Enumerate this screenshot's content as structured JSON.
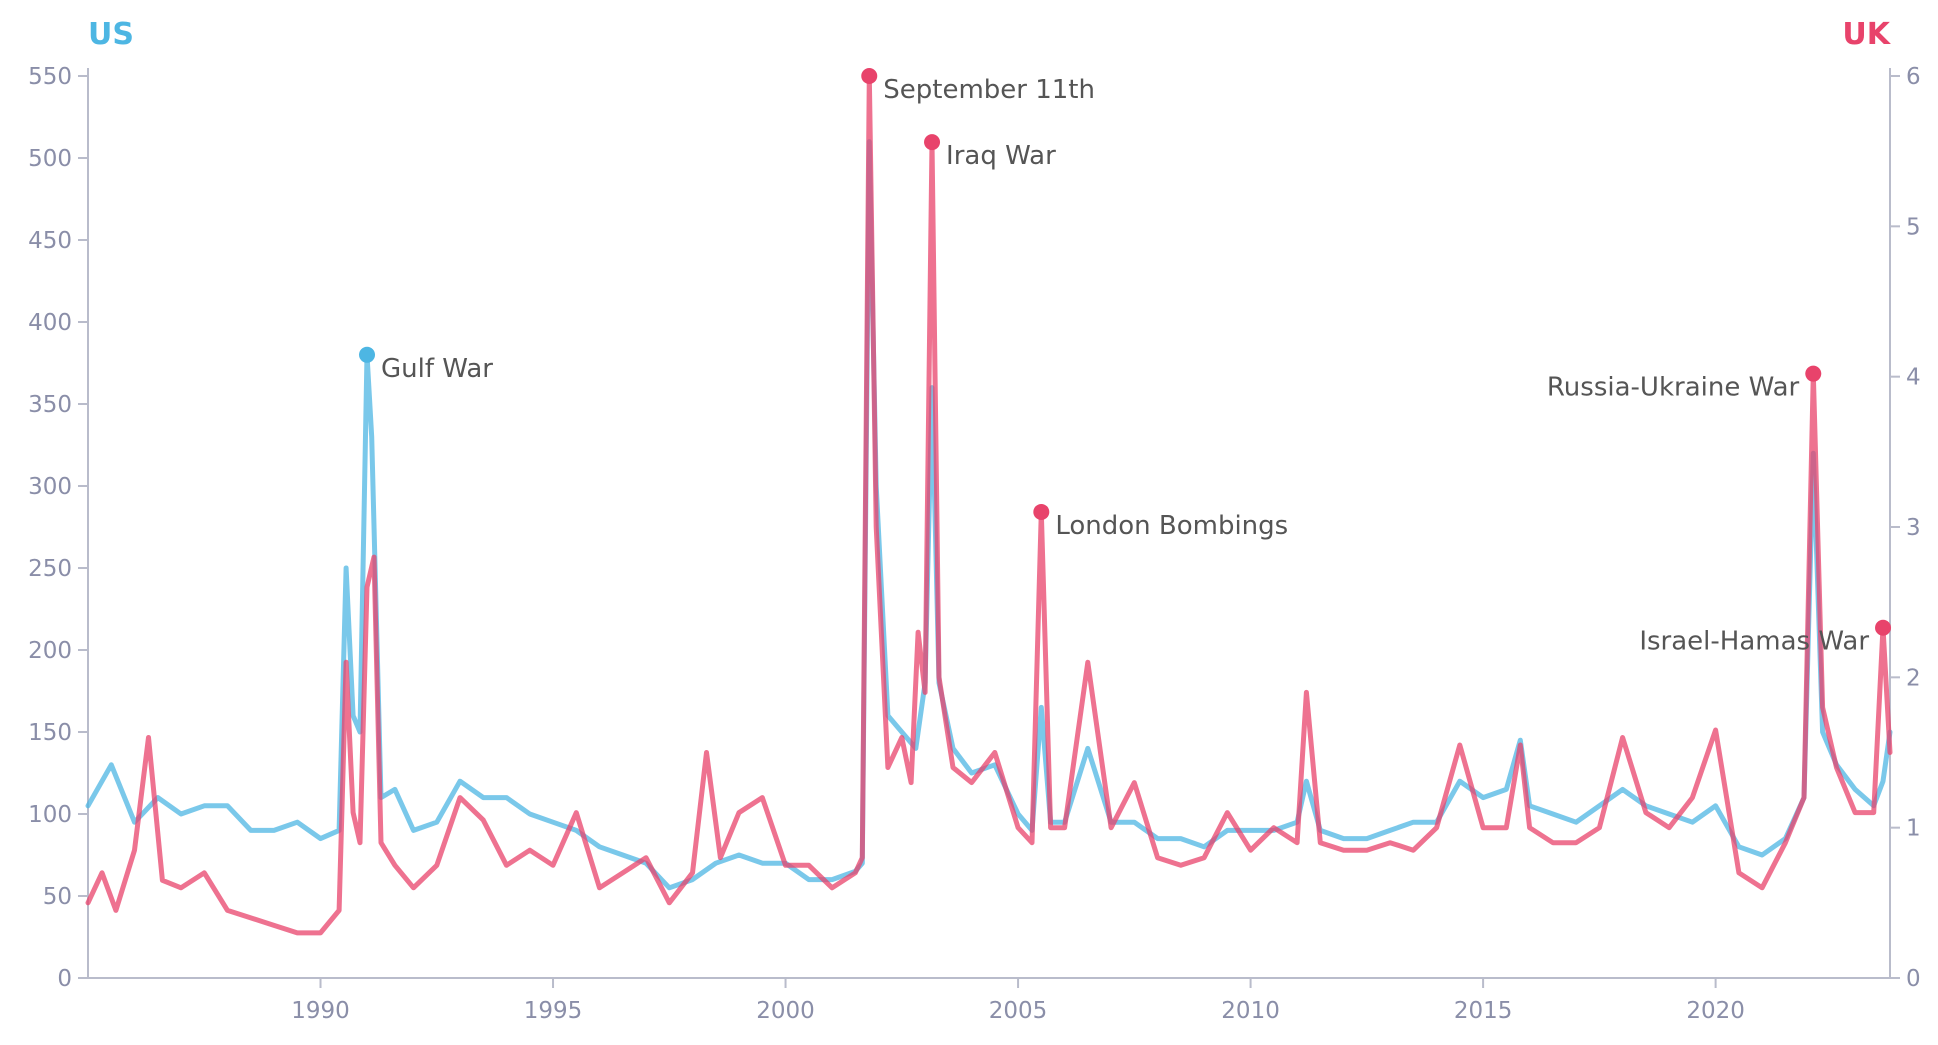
{
  "chart_data": {
    "type": "line",
    "title": "",
    "left_axis": {
      "label": "US",
      "color": "#4db6e3",
      "range": [
        0,
        550
      ],
      "ticks": [
        0,
        50,
        100,
        150,
        200,
        250,
        300,
        350,
        400,
        450,
        500,
        550
      ]
    },
    "right_axis": {
      "label": "UK",
      "color": "#e8436b",
      "range": [
        0,
        6
      ],
      "ticks": [
        0,
        1,
        2,
        3,
        4,
        5,
        6
      ]
    },
    "x_axis": {
      "range": [
        1985,
        2023.75
      ],
      "ticks": [
        1990,
        1995,
        2000,
        2005,
        2010,
        2015,
        2020
      ]
    },
    "grid": false,
    "series": [
      {
        "name": "US",
        "axis": "left",
        "color": "#4db6e3",
        "points": [
          [
            1985.0,
            105
          ],
          [
            1985.5,
            130
          ],
          [
            1986.0,
            95
          ],
          [
            1986.5,
            110
          ],
          [
            1987.0,
            100
          ],
          [
            1987.5,
            105
          ],
          [
            1988.0,
            105
          ],
          [
            1988.5,
            90
          ],
          [
            1989.0,
            90
          ],
          [
            1989.5,
            95
          ],
          [
            1990.0,
            85
          ],
          [
            1990.4,
            90
          ],
          [
            1990.55,
            250
          ],
          [
            1990.7,
            160
          ],
          [
            1990.85,
            150
          ],
          [
            1991.0,
            380
          ],
          [
            1991.1,
            330
          ],
          [
            1991.3,
            110
          ],
          [
            1991.6,
            115
          ],
          [
            1992.0,
            90
          ],
          [
            1992.5,
            95
          ],
          [
            1993.0,
            120
          ],
          [
            1993.5,
            110
          ],
          [
            1994.0,
            110
          ],
          [
            1994.5,
            100
          ],
          [
            1995.0,
            95
          ],
          [
            1995.5,
            90
          ],
          [
            1996.0,
            80
          ],
          [
            1996.5,
            75
          ],
          [
            1997.0,
            70
          ],
          [
            1997.5,
            55
          ],
          [
            1998.0,
            60
          ],
          [
            1998.5,
            70
          ],
          [
            1999.0,
            75
          ],
          [
            1999.5,
            70
          ],
          [
            2000.0,
            70
          ],
          [
            2000.5,
            60
          ],
          [
            2001.0,
            60
          ],
          [
            2001.5,
            65
          ],
          [
            2001.65,
            70
          ],
          [
            2001.8,
            510
          ],
          [
            2001.95,
            300
          ],
          [
            2002.2,
            160
          ],
          [
            2002.5,
            150
          ],
          [
            2002.8,
            140
          ],
          [
            2003.0,
            180
          ],
          [
            2003.15,
            360
          ],
          [
            2003.3,
            180
          ],
          [
            2003.6,
            140
          ],
          [
            2004.0,
            125
          ],
          [
            2004.5,
            130
          ],
          [
            2005.0,
            100
          ],
          [
            2005.3,
            90
          ],
          [
            2005.5,
            165
          ],
          [
            2005.7,
            95
          ],
          [
            2006.0,
            95
          ],
          [
            2006.5,
            140
          ],
          [
            2007.0,
            95
          ],
          [
            2007.5,
            95
          ],
          [
            2008.0,
            85
          ],
          [
            2008.5,
            85
          ],
          [
            2009.0,
            80
          ],
          [
            2009.5,
            90
          ],
          [
            2010.0,
            90
          ],
          [
            2010.5,
            90
          ],
          [
            2011.0,
            95
          ],
          [
            2011.2,
            120
          ],
          [
            2011.5,
            90
          ],
          [
            2012.0,
            85
          ],
          [
            2012.5,
            85
          ],
          [
            2013.0,
            90
          ],
          [
            2013.5,
            95
          ],
          [
            2014.0,
            95
          ],
          [
            2014.5,
            120
          ],
          [
            2015.0,
            110
          ],
          [
            2015.5,
            115
          ],
          [
            2015.8,
            145
          ],
          [
            2016.0,
            105
          ],
          [
            2016.5,
            100
          ],
          [
            2017.0,
            95
          ],
          [
            2017.5,
            105
          ],
          [
            2018.0,
            115
          ],
          [
            2018.5,
            105
          ],
          [
            2019.0,
            100
          ],
          [
            2019.5,
            95
          ],
          [
            2020.0,
            105
          ],
          [
            2020.5,
            80
          ],
          [
            2021.0,
            75
          ],
          [
            2021.5,
            85
          ],
          [
            2021.9,
            110
          ],
          [
            2022.1,
            320
          ],
          [
            2022.3,
            150
          ],
          [
            2022.6,
            130
          ],
          [
            2023.0,
            115
          ],
          [
            2023.4,
            105
          ],
          [
            2023.6,
            120
          ],
          [
            2023.75,
            150
          ]
        ]
      },
      {
        "name": "UK",
        "axis": "right",
        "color": "#e8436b",
        "points": [
          [
            1985.0,
            0.5
          ],
          [
            1985.3,
            0.7
          ],
          [
            1985.6,
            0.45
          ],
          [
            1986.0,
            0.85
          ],
          [
            1986.3,
            1.6
          ],
          [
            1986.6,
            0.65
          ],
          [
            1987.0,
            0.6
          ],
          [
            1987.5,
            0.7
          ],
          [
            1988.0,
            0.45
          ],
          [
            1988.5,
            0.4
          ],
          [
            1989.0,
            0.35
          ],
          [
            1989.5,
            0.3
          ],
          [
            1990.0,
            0.3
          ],
          [
            1990.4,
            0.45
          ],
          [
            1990.55,
            2.1
          ],
          [
            1990.7,
            1.1
          ],
          [
            1990.85,
            0.9
          ],
          [
            1991.0,
            2.6
          ],
          [
            1991.15,
            2.8
          ],
          [
            1991.3,
            0.9
          ],
          [
            1991.6,
            0.75
          ],
          [
            1992.0,
            0.6
          ],
          [
            1992.5,
            0.75
          ],
          [
            1993.0,
            1.2
          ],
          [
            1993.5,
            1.05
          ],
          [
            1994.0,
            0.75
          ],
          [
            1994.5,
            0.85
          ],
          [
            1995.0,
            0.75
          ],
          [
            1995.5,
            1.1
          ],
          [
            1996.0,
            0.6
          ],
          [
            1996.5,
            0.7
          ],
          [
            1997.0,
            0.8
          ],
          [
            1997.5,
            0.5
          ],
          [
            1998.0,
            0.7
          ],
          [
            1998.3,
            1.5
          ],
          [
            1998.6,
            0.8
          ],
          [
            1999.0,
            1.1
          ],
          [
            1999.5,
            1.2
          ],
          [
            2000.0,
            0.75
          ],
          [
            2000.5,
            0.75
          ],
          [
            2001.0,
            0.6
          ],
          [
            2001.5,
            0.7
          ],
          [
            2001.65,
            0.8
          ],
          [
            2001.8,
            6.0
          ],
          [
            2001.95,
            3.0
          ],
          [
            2002.2,
            1.4
          ],
          [
            2002.5,
            1.6
          ],
          [
            2002.7,
            1.3
          ],
          [
            2002.85,
            2.3
          ],
          [
            2003.0,
            1.9
          ],
          [
            2003.15,
            5.56
          ],
          [
            2003.3,
            2.0
          ],
          [
            2003.6,
            1.4
          ],
          [
            2004.0,
            1.3
          ],
          [
            2004.5,
            1.5
          ],
          [
            2005.0,
            1.0
          ],
          [
            2005.3,
            0.9
          ],
          [
            2005.5,
            3.1
          ],
          [
            2005.7,
            1.0
          ],
          [
            2006.0,
            1.0
          ],
          [
            2006.5,
            2.1
          ],
          [
            2007.0,
            1.0
          ],
          [
            2007.5,
            1.3
          ],
          [
            2008.0,
            0.8
          ],
          [
            2008.5,
            0.75
          ],
          [
            2009.0,
            0.8
          ],
          [
            2009.5,
            1.1
          ],
          [
            2010.0,
            0.85
          ],
          [
            2010.5,
            1.0
          ],
          [
            2011.0,
            0.9
          ],
          [
            2011.2,
            1.9
          ],
          [
            2011.5,
            0.9
          ],
          [
            2012.0,
            0.85
          ],
          [
            2012.5,
            0.85
          ],
          [
            2013.0,
            0.9
          ],
          [
            2013.5,
            0.85
          ],
          [
            2014.0,
            1.0
          ],
          [
            2014.5,
            1.55
          ],
          [
            2015.0,
            1.0
          ],
          [
            2015.5,
            1.0
          ],
          [
            2015.8,
            1.55
          ],
          [
            2016.0,
            1.0
          ],
          [
            2016.5,
            0.9
          ],
          [
            2017.0,
            0.9
          ],
          [
            2017.5,
            1.0
          ],
          [
            2018.0,
            1.6
          ],
          [
            2018.5,
            1.1
          ],
          [
            2019.0,
            1.0
          ],
          [
            2019.5,
            1.2
          ],
          [
            2020.0,
            1.65
          ],
          [
            2020.5,
            0.7
          ],
          [
            2021.0,
            0.6
          ],
          [
            2021.5,
            0.9
          ],
          [
            2021.9,
            1.2
          ],
          [
            2022.1,
            4.02
          ],
          [
            2022.3,
            1.8
          ],
          [
            2022.6,
            1.4
          ],
          [
            2023.0,
            1.1
          ],
          [
            2023.4,
            1.1
          ],
          [
            2023.6,
            2.33
          ],
          [
            2023.75,
            1.5
          ]
        ]
      }
    ],
    "annotations": [
      {
        "text": "Gulf War",
        "x": 1991.0,
        "y": 380,
        "axis": "left",
        "color": "#4db6e3",
        "align": "start"
      },
      {
        "text": "September 11th",
        "x": 2001.8,
        "y": 6.0,
        "axis": "right",
        "color": "#e8436b",
        "align": "start"
      },
      {
        "text": "Iraq War",
        "x": 2003.15,
        "y": 5.56,
        "axis": "right",
        "color": "#e8436b",
        "align": "start"
      },
      {
        "text": "London Bombings",
        "x": 2005.5,
        "y": 3.1,
        "axis": "right",
        "color": "#e8436b",
        "align": "start"
      },
      {
        "text": "Russia-Ukraine War",
        "x": 2022.1,
        "y": 4.02,
        "axis": "right",
        "color": "#e8436b",
        "align": "end"
      },
      {
        "text": "Israel-Hamas War",
        "x": 2023.6,
        "y": 2.33,
        "axis": "right",
        "color": "#e8436b",
        "align": "end"
      }
    ]
  }
}
